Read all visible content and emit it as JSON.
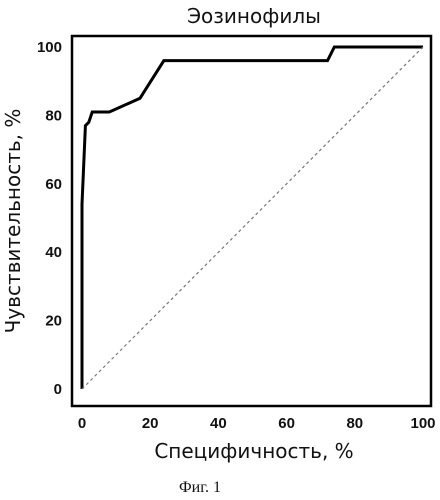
{
  "chart_data": {
    "type": "line",
    "title": "Эозинофилы",
    "xlabel": "Специфичность, %",
    "ylabel": "Чувствительность, %",
    "xlim": [
      0,
      100
    ],
    "ylim": [
      0,
      100
    ],
    "x_ticks": [
      "0",
      "20",
      "40",
      "60",
      "80",
      "100"
    ],
    "y_ticks": [
      "0",
      "20",
      "40",
      "60",
      "80",
      "100"
    ],
    "grid": false,
    "series": [
      {
        "style": "solid",
        "color": "#000000",
        "x": [
          0,
          0,
          1,
          2,
          3,
          4,
          8,
          17,
          24,
          72,
          74,
          100
        ],
        "y": [
          0,
          54,
          77,
          78,
          81,
          81,
          81,
          85,
          96,
          96,
          100,
          100
        ]
      },
      {
        "style": "dotted",
        "color": "#777777",
        "x": [
          0,
          100
        ],
        "y": [
          0,
          100
        ]
      }
    ]
  },
  "caption": "Фиг. 1"
}
